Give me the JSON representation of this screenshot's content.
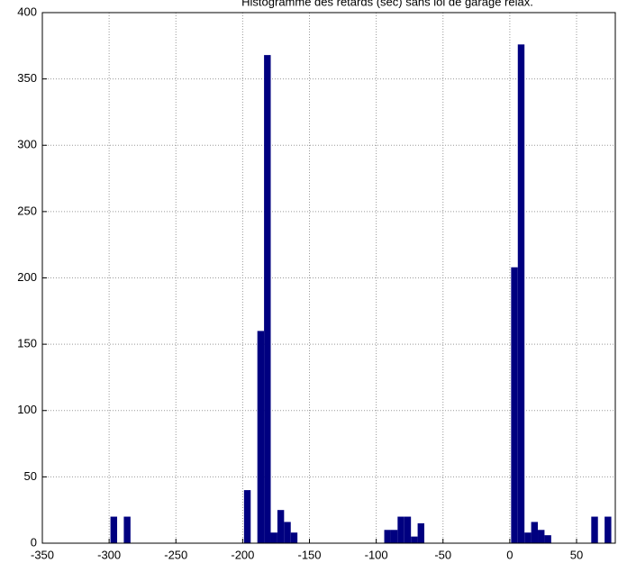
{
  "chart_data": {
    "type": "histogram",
    "title": "Histogramme des retards (sec) sans loi de garage relax.",
    "bins": [
      -299,
      -294,
      -289,
      -284,
      -279,
      -274,
      -269,
      -264,
      -259,
      -254,
      -249,
      -244,
      -239,
      -234,
      -229,
      -224,
      -219,
      -214,
      -209,
      -204,
      -199,
      -194,
      -189,
      -184,
      -179,
      -174,
      -169,
      -164,
      -159,
      -154,
      -149,
      -144,
      -139,
      -134,
      -129,
      -124,
      -119,
      -114,
      -109,
      -104,
      -99,
      -94,
      -89,
      -84,
      -79,
      -74,
      -69,
      -64,
      -59,
      -54,
      -49,
      -44,
      -39,
      -34,
      -29,
      -24,
      -19,
      -14,
      -9,
      -4,
      1,
      6,
      11,
      16,
      21,
      26,
      31,
      36,
      41,
      46,
      51,
      56,
      61,
      66,
      71,
      76
    ],
    "values": [
      20,
      0,
      20,
      0,
      0,
      0,
      0,
      0,
      0,
      0,
      0,
      0,
      0,
      0,
      0,
      0,
      0,
      0,
      0,
      0,
      40,
      0,
      160,
      368,
      8,
      25,
      16,
      8,
      0,
      0,
      0,
      0,
      0,
      0,
      0,
      0,
      0,
      0,
      0,
      0,
      0,
      10,
      10,
      20,
      20,
      5,
      15,
      0,
      0,
      0,
      0,
      0,
      0,
      0,
      0,
      0,
      0,
      0,
      0,
      0,
      208,
      376,
      8,
      16,
      10,
      6,
      0,
      0,
      0,
      0,
      0,
      0,
      20,
      0,
      20
    ],
    "color": "#000080",
    "xlim": [
      -350,
      79
    ],
    "xticks": [
      -350,
      -300,
      -250,
      -200,
      -150,
      -100,
      -50,
      0,
      50
    ],
    "ylim": [
      0,
      400
    ],
    "yticks": [
      0,
      50,
      100,
      150,
      200,
      250,
      300,
      350,
      400
    ],
    "grid": true
  }
}
